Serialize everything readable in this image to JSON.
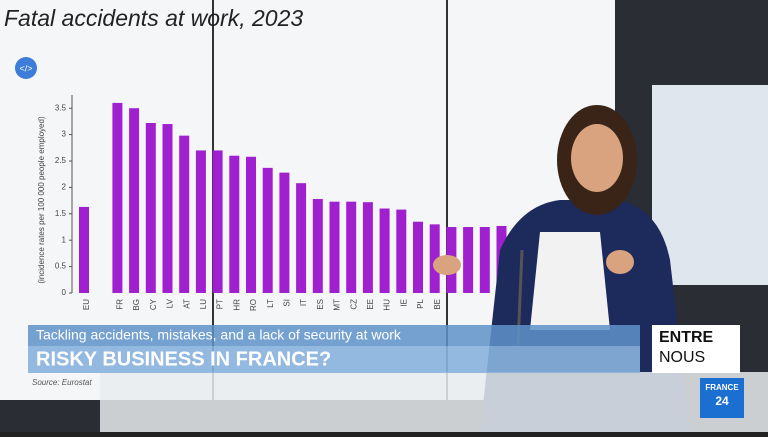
{
  "chart_data": {
    "type": "bar",
    "title": "Fatal accidents at work, 2023",
    "y_label": "(incidence rates per 100 000 people employed)",
    "source": "Source: Eurostat",
    "categories": [
      "EU",
      null,
      "FR",
      "BG",
      "CY",
      "LV",
      "AT",
      "LU",
      "PT",
      "HR",
      "RO",
      "LT",
      "SI",
      "IT",
      "ES",
      "MT",
      "CZ",
      "EE",
      "HU",
      "IE",
      "PL",
      "BE",
      null,
      null,
      null,
      null
    ],
    "values": [
      1.63,
      null,
      3.6,
      3.5,
      3.22,
      3.2,
      2.98,
      2.7,
      2.7,
      2.6,
      2.58,
      2.37,
      2.28,
      2.08,
      1.78,
      1.73,
      1.73,
      1.72,
      1.6,
      1.58,
      1.35,
      1.3,
      1.25,
      1.25,
      1.25,
      1.27
    ],
    "color": "#a020d0",
    "ylim": [
      0,
      3.75
    ],
    "yticks": [
      0,
      0.5,
      1,
      1.5,
      2,
      2.5,
      3,
      3.5
    ],
    "grid": false
  },
  "lower_third": {
    "subtitle": "Tackling accidents, mistakes, and a lack of security at work",
    "headline": "RISKY BUSINESS IN FRANCE?"
  },
  "show": {
    "line1": "ENTRE",
    "line2": "NOUS"
  },
  "channel": {
    "line1": "FRANCE",
    "line2": "24"
  }
}
